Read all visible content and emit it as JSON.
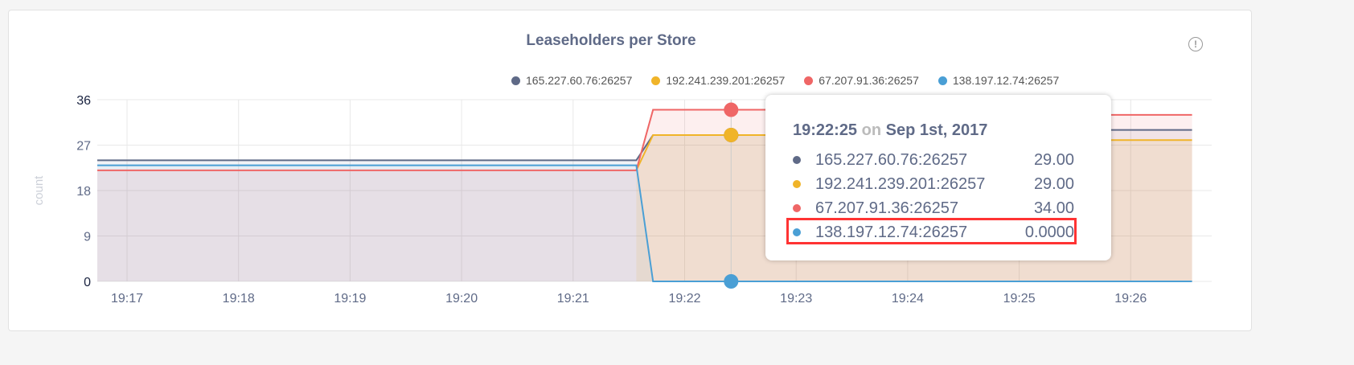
{
  "title": "Leaseholders per Store",
  "info_icon": "info-circle-icon",
  "chart_data": {
    "type": "area",
    "title": "Leaseholders per Store",
    "xlabel": "",
    "ylabel": "count",
    "ylim": [
      0,
      36
    ],
    "yticks": [
      "0",
      "9",
      "18",
      "27",
      "36"
    ],
    "xticks": [
      "19:17",
      "19:18",
      "19:19",
      "19:20",
      "19:21",
      "19:22",
      "19:23",
      "19:24",
      "19:25",
      "19:26"
    ],
    "grid": true,
    "legend": "top-center",
    "series": [
      {
        "name": "165.227.60.76:26257",
        "color": "#5f6a87",
        "points": [
          [
            "19:16:44",
            24
          ],
          [
            "19:21:34",
            24
          ],
          [
            "19:21:43",
            29
          ],
          [
            "19:24:30",
            29
          ],
          [
            "19:24:40",
            30
          ],
          [
            "19:26:33",
            30
          ]
        ]
      },
      {
        "name": "192.241.239.201:26257",
        "color": "#f0b429",
        "points": [
          [
            "19:16:44",
            null
          ],
          [
            "19:21:34",
            22
          ],
          [
            "19:21:43",
            29
          ],
          [
            "19:24:30",
            29
          ],
          [
            "19:24:40",
            28
          ],
          [
            "19:26:33",
            28
          ]
        ]
      },
      {
        "name": "67.207.91.36:26257",
        "color": "#ef6666",
        "points": [
          [
            "19:16:44",
            22
          ],
          [
            "19:21:34",
            22
          ],
          [
            "19:21:43",
            34
          ],
          [
            "19:24:30",
            34
          ],
          [
            "19:24:40",
            33
          ],
          [
            "19:26:33",
            33
          ]
        ]
      },
      {
        "name": "138.197.12.74:26257",
        "color": "#4a9fd5",
        "points": [
          [
            "19:16:44",
            23
          ],
          [
            "19:21:34",
            23
          ],
          [
            "19:21:43",
            0
          ],
          [
            "19:26:33",
            0
          ]
        ]
      }
    ]
  },
  "tooltip": {
    "time": "19:22:25",
    "on": "on",
    "date": "Sep 1st, 2017",
    "rows": [
      {
        "name": "165.227.60.76:26257",
        "value": "29.00",
        "color": "#5f6a87"
      },
      {
        "name": "192.241.239.201:26257",
        "value": "29.00",
        "color": "#f0b429"
      },
      {
        "name": "67.207.91.36:26257",
        "value": "34.00",
        "color": "#ef6666"
      },
      {
        "name": "138.197.12.74:26257",
        "value": "0.0000",
        "color": "#4a9fd5"
      }
    ]
  }
}
